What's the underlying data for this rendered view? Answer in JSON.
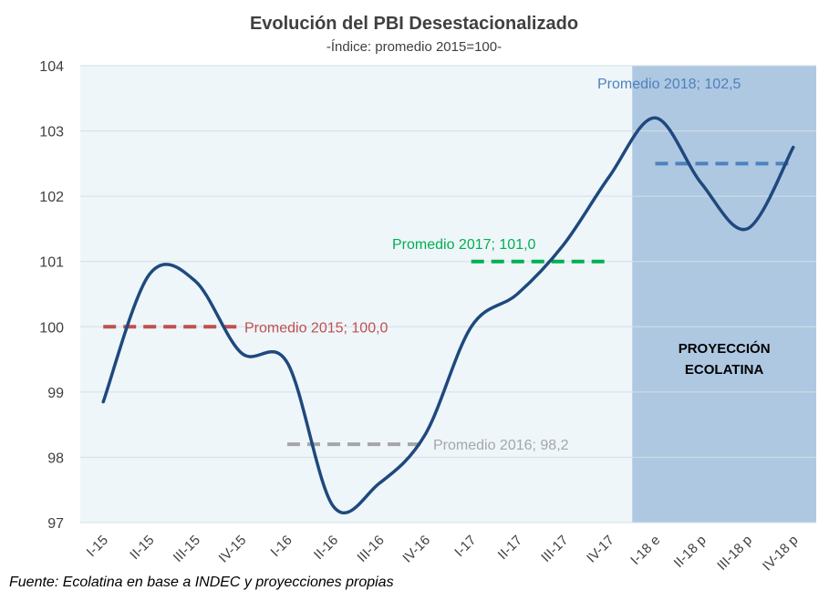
{
  "chart_data": {
    "type": "line",
    "title": "Evolución del PBI Desestacionalizado",
    "subtitle": "-Índice: promedio 2015=100-",
    "xlabel": "",
    "ylabel": "",
    "ylim": [
      97,
      104
    ],
    "yticks": [
      "97",
      "98",
      "99",
      "100",
      "101",
      "102",
      "103",
      "104"
    ],
    "categories": [
      "I-15",
      "II-15",
      "III-15",
      "IV-15",
      "I-16",
      "II-16",
      "III-16",
      "IV-16",
      "I-17",
      "II-17",
      "III-17",
      "IV-17",
      "I-18 e",
      "II-18 p",
      "III-18 p",
      "IV-18 p"
    ],
    "grid": "horizontal",
    "series": [
      {
        "values": [
          98.85,
          100.8,
          100.7,
          99.6,
          99.45,
          97.25,
          97.6,
          98.35,
          100.0,
          100.5,
          101.25,
          102.3,
          103.2,
          102.2,
          101.5,
          102.75
        ],
        "color": "#1f497d"
      }
    ],
    "averages": [
      {
        "label": "Promedio 2015; 100,0",
        "value": 100.0,
        "from": 0,
        "to": 3,
        "color": "#c0504d"
      },
      {
        "label": "Promedio 2016; 98,2",
        "value": 98.2,
        "from": 4,
        "to": 7,
        "color": "#a6a6a6"
      },
      {
        "label": "Promedio 2017; 101,0",
        "value": 101.0,
        "from": 8,
        "to": 11,
        "color": "#00b050"
      },
      {
        "label": "Promedio 2018; 102,5",
        "value": 102.5,
        "from": 12,
        "to": 15,
        "color": "#4f81bd"
      }
    ],
    "projection": {
      "label_line1": "PROYECCIÓN",
      "label_line2": "ECOLATINA",
      "from_category": 12,
      "color": "#aec8e2"
    },
    "plot_bg_color": "#eef6fa",
    "source": "Fuente: Ecolatina en base a INDEC y proyecciones propias"
  }
}
